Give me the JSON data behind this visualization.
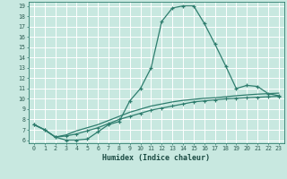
{
  "xlabel": "Humidex (Indice chaleur)",
  "background_color": "#c8e8e0",
  "grid_color": "#ffffff",
  "line_color": "#2e7d6e",
  "xlim": [
    -0.5,
    23.5
  ],
  "ylim": [
    5.7,
    19.4
  ],
  "xticks": [
    0,
    1,
    2,
    3,
    4,
    5,
    6,
    7,
    8,
    9,
    10,
    11,
    12,
    13,
    14,
    15,
    16,
    17,
    18,
    19,
    20,
    21,
    22,
    23
  ],
  "yticks": [
    6,
    7,
    8,
    9,
    10,
    11,
    12,
    13,
    14,
    15,
    16,
    17,
    18,
    19
  ],
  "series1_x": [
    0,
    1,
    2,
    3,
    4,
    5,
    6,
    7,
    8,
    9,
    10,
    11,
    12,
    13,
    14,
    15,
    16,
    17,
    18,
    19,
    20,
    21,
    22,
    23
  ],
  "series1_y": [
    7.5,
    7.0,
    6.3,
    6.0,
    6.0,
    6.1,
    6.8,
    7.5,
    7.8,
    9.8,
    11.0,
    13.0,
    17.5,
    18.8,
    19.0,
    19.0,
    17.3,
    15.3,
    13.2,
    11.0,
    11.3,
    11.2,
    10.5,
    10.3
  ],
  "series2_x": [
    0,
    1,
    2,
    3,
    4,
    5,
    6,
    7,
    8,
    9,
    10,
    11,
    12,
    13,
    14,
    15,
    16,
    17,
    18,
    19,
    20,
    21,
    22,
    23
  ],
  "series2_y": [
    7.5,
    7.0,
    6.3,
    6.4,
    6.6,
    6.9,
    7.2,
    7.6,
    8.0,
    8.3,
    8.6,
    8.9,
    9.1,
    9.3,
    9.5,
    9.7,
    9.8,
    9.9,
    10.0,
    10.05,
    10.1,
    10.15,
    10.2,
    10.25
  ],
  "series3_x": [
    0,
    1,
    2,
    3,
    4,
    5,
    6,
    7,
    8,
    9,
    10,
    11,
    12,
    13,
    14,
    15,
    16,
    17,
    18,
    19,
    20,
    21,
    22,
    23
  ],
  "series3_y": [
    7.5,
    7.0,
    6.3,
    6.5,
    6.9,
    7.2,
    7.5,
    7.9,
    8.3,
    8.7,
    9.0,
    9.3,
    9.5,
    9.7,
    9.85,
    9.95,
    10.05,
    10.1,
    10.2,
    10.3,
    10.38,
    10.45,
    10.5,
    10.55
  ]
}
